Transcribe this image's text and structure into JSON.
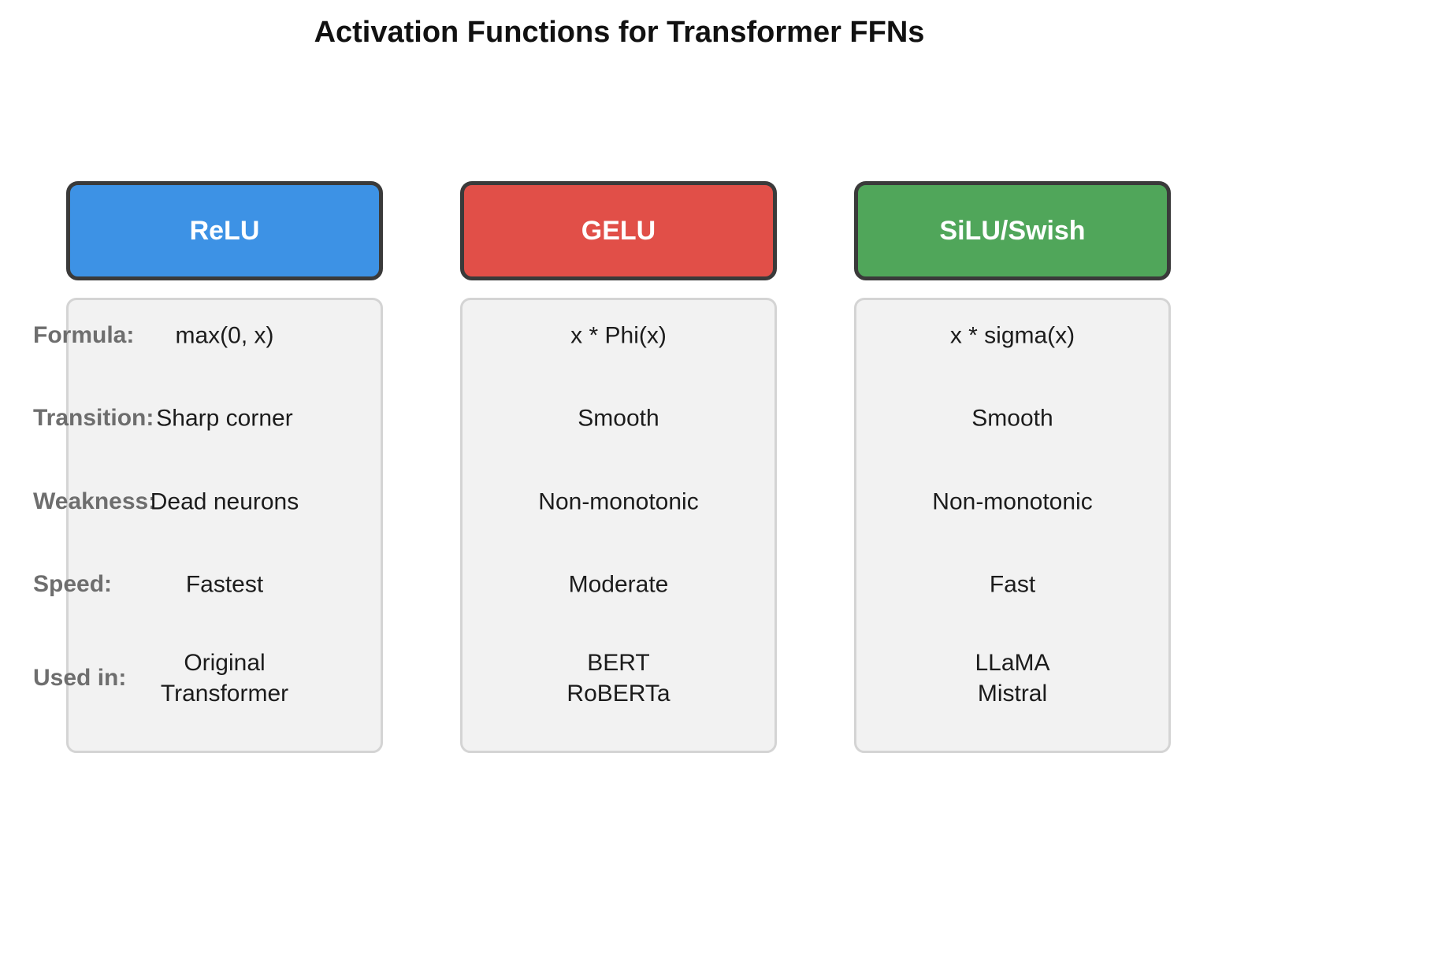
{
  "title": "Activation Functions for Transformer FFNs",
  "rows": {
    "labels": [
      "Formula:",
      "Transition:",
      "Weakness:",
      "Speed:",
      "Used in:"
    ]
  },
  "columns": [
    {
      "name": "ReLU",
      "header_color": "#3d92e5",
      "values": [
        "max(0, x)",
        "Sharp corner",
        "Dead neurons",
        "Fastest",
        "Original\nTransformer"
      ]
    },
    {
      "name": "GELU",
      "header_color": "#e14f48",
      "values": [
        "x * Phi(x)",
        "Smooth",
        "Non-monotonic",
        "Moderate",
        "BERT\nRoBERTa"
      ]
    },
    {
      "name": "SiLU/Swish",
      "header_color": "#50a65a",
      "values": [
        "x * sigma(x)",
        "Smooth",
        "Non-monotonic",
        "Fast",
        "LLaMA\nMistral"
      ]
    }
  ],
  "colors": {
    "header_border": "#3a3a3a",
    "card_background": "#f2f2f2",
    "card_border": "#d4d4d4",
    "label_text": "#6e6e6e",
    "value_text": "#1c1c1c",
    "title_text": "#111111"
  }
}
